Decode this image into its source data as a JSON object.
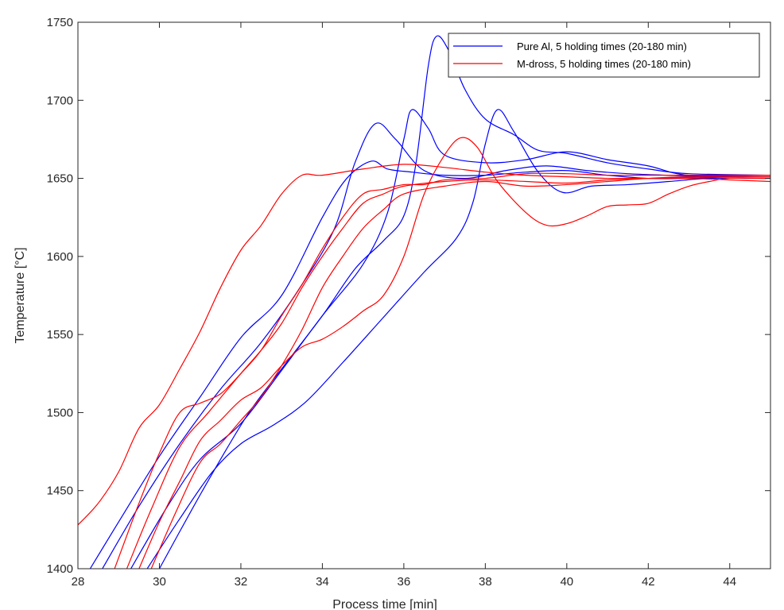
{
  "chart_data": {
    "type": "line",
    "xlabel": "Process time [min]",
    "ylabel": "Temperature [°C]",
    "xlim": [
      28,
      45
    ],
    "ylim": [
      1400,
      1750
    ],
    "xticks": [
      28,
      30,
      32,
      34,
      36,
      38,
      40,
      42,
      44
    ],
    "yticks": [
      1400,
      1450,
      1500,
      1550,
      1600,
      1650,
      1700,
      1750
    ],
    "grid": false,
    "legend_position": "top-right",
    "legend": [
      {
        "label": "Pure Al, 5 holding times (20-180 min)",
        "color": "#0000ff"
      },
      {
        "label": "M-dross, 5 holding times (20-180 min)",
        "color": "#ff0000"
      }
    ],
    "series": [
      {
        "group": "Pure Al",
        "color": "#0000ff",
        "points": [
          [
            28.3,
            1400
          ],
          [
            29,
            1430
          ],
          [
            30,
            1472
          ],
          [
            31,
            1510
          ],
          [
            32,
            1548
          ],
          [
            33,
            1575
          ],
          [
            34,
            1625
          ],
          [
            34.6,
            1650
          ],
          [
            35.2,
            1661
          ],
          [
            35.6,
            1656
          ],
          [
            36.2,
            1654
          ],
          [
            37,
            1652
          ],
          [
            38,
            1652
          ],
          [
            39,
            1654
          ],
          [
            40,
            1655
          ],
          [
            41,
            1652
          ],
          [
            42,
            1650
          ],
          [
            43,
            1650
          ],
          [
            44,
            1651
          ],
          [
            45,
            1651
          ]
        ]
      },
      {
        "group": "Pure Al",
        "color": "#0000ff",
        "points": [
          [
            28.6,
            1400
          ],
          [
            29.5,
            1440
          ],
          [
            30.5,
            1480
          ],
          [
            31.5,
            1515
          ],
          [
            32.5,
            1545
          ],
          [
            33.5,
            1582
          ],
          [
            34.3,
            1618
          ],
          [
            34.8,
            1660
          ],
          [
            35.3,
            1685
          ],
          [
            35.8,
            1675
          ],
          [
            36.5,
            1655
          ],
          [
            37.5,
            1650
          ],
          [
            38.5,
            1655
          ],
          [
            39.5,
            1658
          ],
          [
            40.5,
            1655
          ],
          [
            41.5,
            1653
          ],
          [
            42.5,
            1652
          ],
          [
            43.5,
            1651
          ],
          [
            45,
            1651
          ]
        ]
      },
      {
        "group": "Pure Al",
        "color": "#0000ff",
        "points": [
          [
            29.3,
            1400
          ],
          [
            30.2,
            1440
          ],
          [
            31,
            1470
          ],
          [
            32,
            1493
          ],
          [
            33,
            1527
          ],
          [
            34,
            1562
          ],
          [
            35,
            1595
          ],
          [
            35.6,
            1628
          ],
          [
            36,
            1675
          ],
          [
            36.2,
            1694
          ],
          [
            36.6,
            1682
          ],
          [
            37,
            1665
          ],
          [
            38,
            1660
          ],
          [
            39,
            1662
          ],
          [
            40,
            1667
          ],
          [
            41,
            1662
          ],
          [
            42,
            1658
          ],
          [
            43,
            1652
          ],
          [
            45,
            1652
          ]
        ]
      },
      {
        "group": "Pure Al",
        "color": "#0000ff",
        "points": [
          [
            29.7,
            1400
          ],
          [
            30.5,
            1432
          ],
          [
            31.3,
            1462
          ],
          [
            32,
            1480
          ],
          [
            32.8,
            1492
          ],
          [
            33.6,
            1507
          ],
          [
            34.5,
            1532
          ],
          [
            35.5,
            1561
          ],
          [
            36.5,
            1590
          ],
          [
            37.3,
            1612
          ],
          [
            37.7,
            1635
          ],
          [
            38,
            1672
          ],
          [
            38.3,
            1694
          ],
          [
            38.7,
            1680
          ],
          [
            39.3,
            1654
          ],
          [
            39.9,
            1641
          ],
          [
            40.6,
            1645
          ],
          [
            41.5,
            1646
          ],
          [
            42.5,
            1648
          ],
          [
            43.5,
            1650
          ],
          [
            44.5,
            1650
          ],
          [
            45,
            1650
          ]
        ]
      },
      {
        "group": "Pure Al",
        "color": "#0000ff",
        "points": [
          [
            30,
            1400
          ],
          [
            30.8,
            1438
          ],
          [
            31.5,
            1470
          ],
          [
            32.2,
            1500
          ],
          [
            33,
            1528
          ],
          [
            34,
            1562
          ],
          [
            34.8,
            1592
          ],
          [
            35.5,
            1610
          ],
          [
            36,
            1626
          ],
          [
            36.3,
            1660
          ],
          [
            36.6,
            1722
          ],
          [
            36.8,
            1741
          ],
          [
            37.1,
            1732
          ],
          [
            37.5,
            1707
          ],
          [
            38,
            1688
          ],
          [
            38.7,
            1678
          ],
          [
            39.3,
            1668
          ],
          [
            40,
            1666
          ],
          [
            41,
            1660
          ],
          [
            42,
            1656
          ],
          [
            43,
            1653
          ],
          [
            45,
            1652
          ]
        ]
      },
      {
        "group": "M-dross",
        "color": "#ff0000",
        "points": [
          [
            28,
            1428
          ],
          [
            28.5,
            1442
          ],
          [
            29,
            1462
          ],
          [
            29.5,
            1490
          ],
          [
            30,
            1505
          ],
          [
            30.5,
            1528
          ],
          [
            31,
            1552
          ],
          [
            31.5,
            1580
          ],
          [
            32,
            1604
          ],
          [
            32.5,
            1620
          ],
          [
            33,
            1640
          ],
          [
            33.5,
            1652
          ],
          [
            34,
            1652
          ],
          [
            35,
            1656
          ],
          [
            36,
            1659
          ],
          [
            37,
            1657
          ],
          [
            38,
            1654
          ],
          [
            39,
            1652
          ],
          [
            40,
            1651
          ],
          [
            41,
            1650
          ],
          [
            42,
            1650
          ],
          [
            43,
            1650
          ],
          [
            44,
            1649
          ],
          [
            45,
            1648
          ]
        ]
      },
      {
        "group": "M-dross",
        "color": "#ff0000",
        "points": [
          [
            28.9,
            1400
          ],
          [
            29.5,
            1442
          ],
          [
            30,
            1474
          ],
          [
            30.5,
            1500
          ],
          [
            31,
            1506
          ],
          [
            31.5,
            1512
          ],
          [
            32,
            1525
          ],
          [
            32.5,
            1540
          ],
          [
            33,
            1562
          ],
          [
            33.5,
            1582
          ],
          [
            34,
            1605
          ],
          [
            34.5,
            1625
          ],
          [
            35,
            1640
          ],
          [
            35.5,
            1643
          ],
          [
            36,
            1646
          ],
          [
            36.5,
            1646
          ],
          [
            37,
            1649
          ],
          [
            38,
            1650
          ],
          [
            39,
            1653
          ],
          [
            40,
            1653
          ],
          [
            41,
            1652
          ],
          [
            42,
            1652
          ],
          [
            43,
            1652
          ],
          [
            45,
            1652
          ]
        ]
      },
      {
        "group": "M-dross",
        "color": "#ff0000",
        "points": [
          [
            29.2,
            1400
          ],
          [
            29.8,
            1438
          ],
          [
            30.5,
            1478
          ],
          [
            31.2,
            1500
          ],
          [
            32,
            1525
          ],
          [
            32.5,
            1540
          ],
          [
            33,
            1557
          ],
          [
            33.5,
            1580
          ],
          [
            34,
            1600
          ],
          [
            34.5,
            1618
          ],
          [
            35,
            1634
          ],
          [
            35.5,
            1640
          ],
          [
            36,
            1645
          ],
          [
            37,
            1648
          ],
          [
            38,
            1649
          ],
          [
            39,
            1648
          ],
          [
            40,
            1647
          ],
          [
            41,
            1649
          ],
          [
            42,
            1650
          ],
          [
            44,
            1651
          ],
          [
            45,
            1651
          ]
        ]
      },
      {
        "group": "M-dross",
        "color": "#ff0000",
        "points": [
          [
            29.5,
            1400
          ],
          [
            30,
            1430
          ],
          [
            30.5,
            1456
          ],
          [
            31,
            1482
          ],
          [
            31.5,
            1495
          ],
          [
            32,
            1508
          ],
          [
            32.5,
            1516
          ],
          [
            33,
            1530
          ],
          [
            33.5,
            1542
          ],
          [
            34,
            1547
          ],
          [
            34.5,
            1555
          ],
          [
            35,
            1565
          ],
          [
            35.5,
            1575
          ],
          [
            36,
            1600
          ],
          [
            36.5,
            1640
          ],
          [
            37,
            1665
          ],
          [
            37.4,
            1676
          ],
          [
            37.8,
            1670
          ],
          [
            38.3,
            1648
          ],
          [
            39,
            1628
          ],
          [
            39.5,
            1620
          ],
          [
            40,
            1621
          ],
          [
            40.5,
            1626
          ],
          [
            41,
            1632
          ],
          [
            41.5,
            1633
          ],
          [
            42,
            1634
          ],
          [
            42.5,
            1640
          ],
          [
            43,
            1645
          ],
          [
            43.5,
            1648
          ],
          [
            44,
            1650
          ],
          [
            45,
            1650
          ]
        ]
      },
      {
        "group": "M-dross",
        "color": "#ff0000",
        "points": [
          [
            29.8,
            1400
          ],
          [
            30.4,
            1436
          ],
          [
            31,
            1468
          ],
          [
            31.5,
            1480
          ],
          [
            32,
            1495
          ],
          [
            32.5,
            1510
          ],
          [
            33,
            1530
          ],
          [
            33.5,
            1553
          ],
          [
            34,
            1580
          ],
          [
            34.5,
            1600
          ],
          [
            35,
            1618
          ],
          [
            35.5,
            1630
          ],
          [
            36,
            1640
          ],
          [
            37,
            1645
          ],
          [
            38,
            1648
          ],
          [
            39,
            1645
          ],
          [
            40,
            1646
          ],
          [
            41,
            1648
          ],
          [
            42,
            1650
          ],
          [
            43,
            1651
          ],
          [
            45,
            1651
          ]
        ]
      }
    ]
  }
}
